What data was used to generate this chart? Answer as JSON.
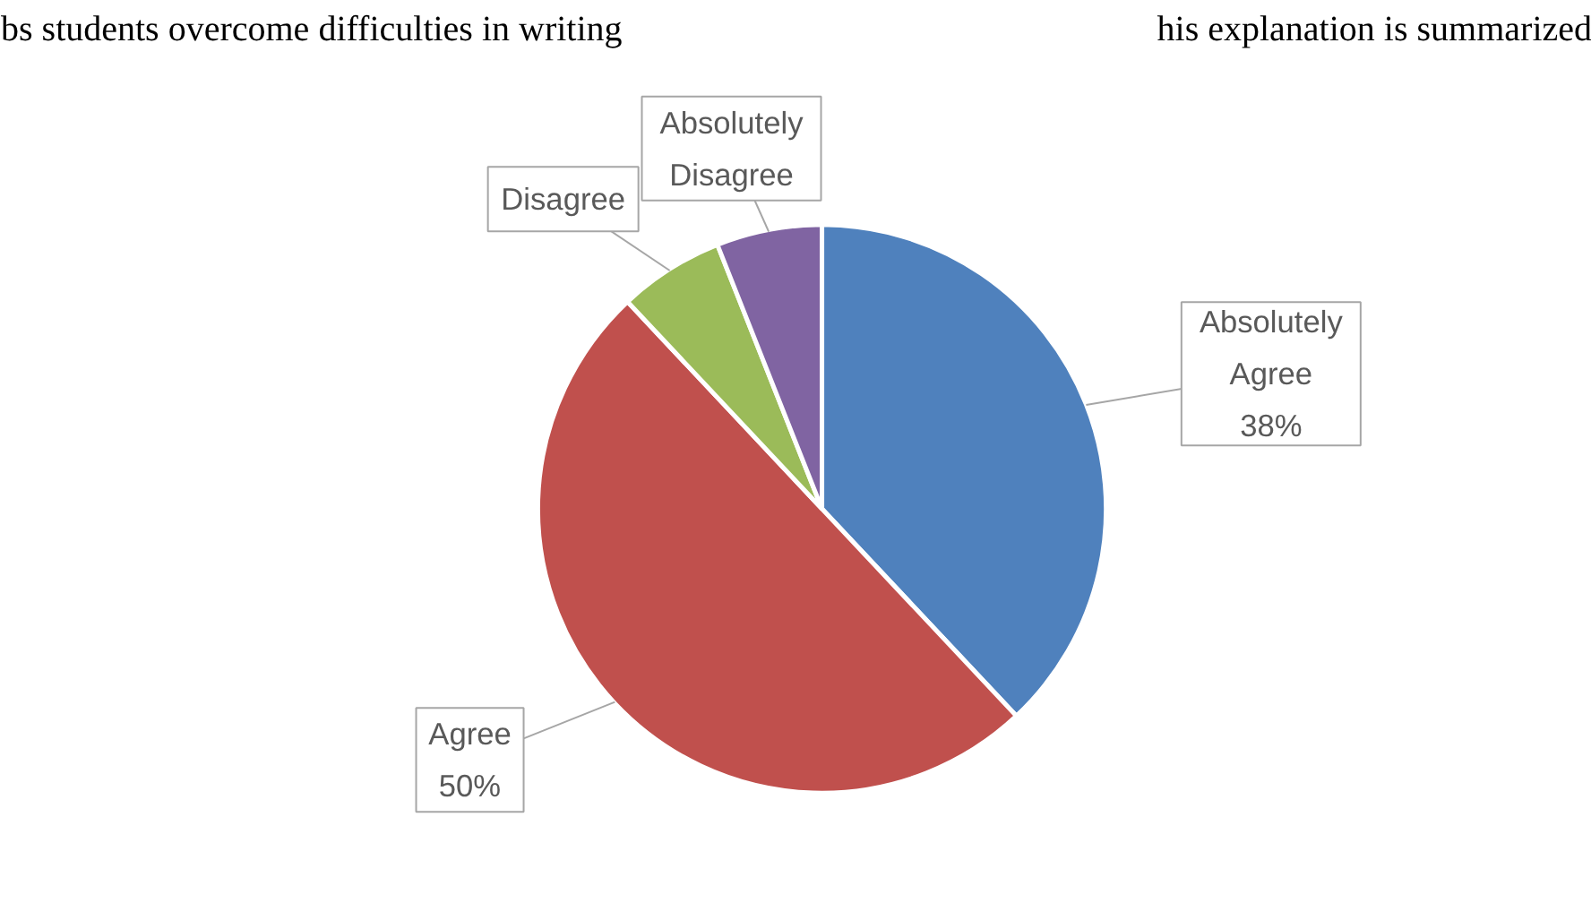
{
  "chart_data": {
    "type": "pie",
    "categories": [
      "Absolutely Agree",
      "Agree",
      "Disagree",
      "Absolutely Disagree"
    ],
    "values": [
      38,
      50,
      6,
      6
    ],
    "colors": [
      "#4f81bd",
      "#c0504d",
      "#9bbb59",
      "#8064a2"
    ],
    "value_labels": [
      "38%",
      "50%",
      null,
      null
    ],
    "annotations": [
      "bs students overcome difficulties in writing",
      "his explanation is summarized"
    ]
  }
}
